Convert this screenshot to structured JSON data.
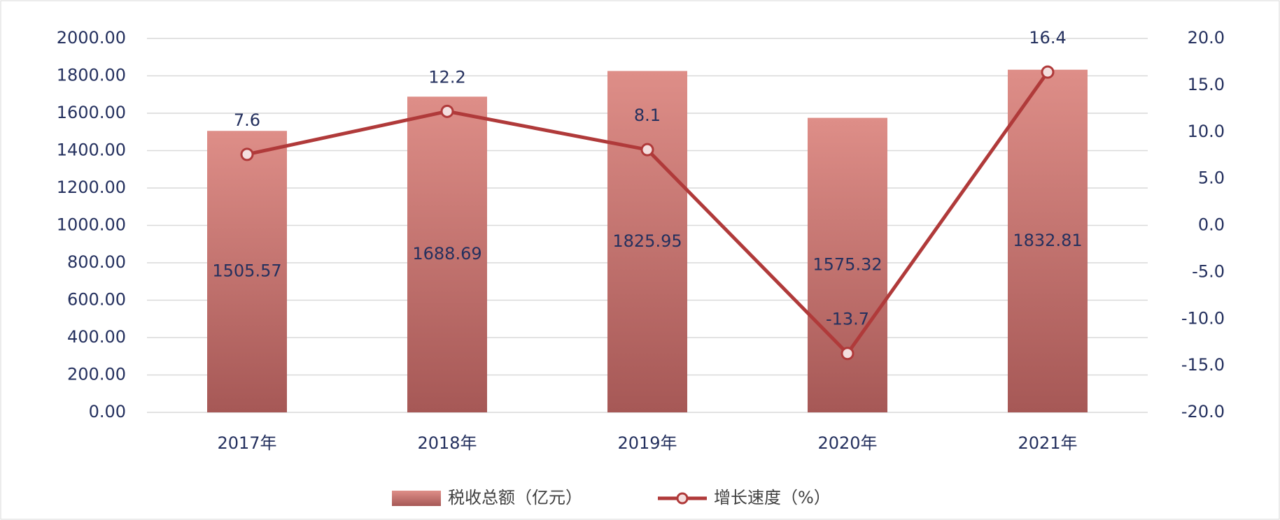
{
  "chart_data": {
    "type": "bar-line",
    "categories": [
      "2017年",
      "2018年",
      "2019年",
      "2020年",
      "2021年"
    ],
    "series": [
      {
        "name": "税收总额（亿元）",
        "type": "bar",
        "color": "#c96f6b",
        "values": [
          1505.57,
          1688.69,
          1825.95,
          1575.32,
          1832.81
        ]
      },
      {
        "name": "增长速度（%）",
        "type": "line",
        "color": "#b03a3a",
        "axis": "y2",
        "values": [
          7.6,
          12.2,
          8.1,
          -13.7,
          16.4
        ]
      }
    ],
    "ylim": [
      0,
      2000
    ],
    "yticks": [
      {
        "value": 0,
        "label": "0.00"
      },
      {
        "value": 200,
        "label": "200.00"
      },
      {
        "value": 400,
        "label": "400.00"
      },
      {
        "value": 600,
        "label": "600.00"
      },
      {
        "value": 800,
        "label": "800.00"
      },
      {
        "value": 1000,
        "label": "1000.00"
      },
      {
        "value": 1200,
        "label": "1200.00"
      },
      {
        "value": 1400,
        "label": "1400.00"
      },
      {
        "value": 1600,
        "label": "1600.00"
      },
      {
        "value": 1800,
        "label": "1800.00"
      },
      {
        "value": 2000,
        "label": "2000.00"
      }
    ],
    "y2lim": [
      -20,
      20
    ],
    "y2ticks": [
      {
        "value": -20,
        "label": "-20.0"
      },
      {
        "value": -15,
        "label": "-15.0"
      },
      {
        "value": -10,
        "label": "-10.0"
      },
      {
        "value": -5,
        "label": "-5.0"
      },
      {
        "value": 0,
        "label": "0.0"
      },
      {
        "value": 5,
        "label": "5.0"
      },
      {
        "value": 10,
        "label": "10.0"
      },
      {
        "value": 15,
        "label": "15.0"
      },
      {
        "value": 20,
        "label": "20.0"
      }
    ],
    "grid": true,
    "legend": "bottom"
  }
}
